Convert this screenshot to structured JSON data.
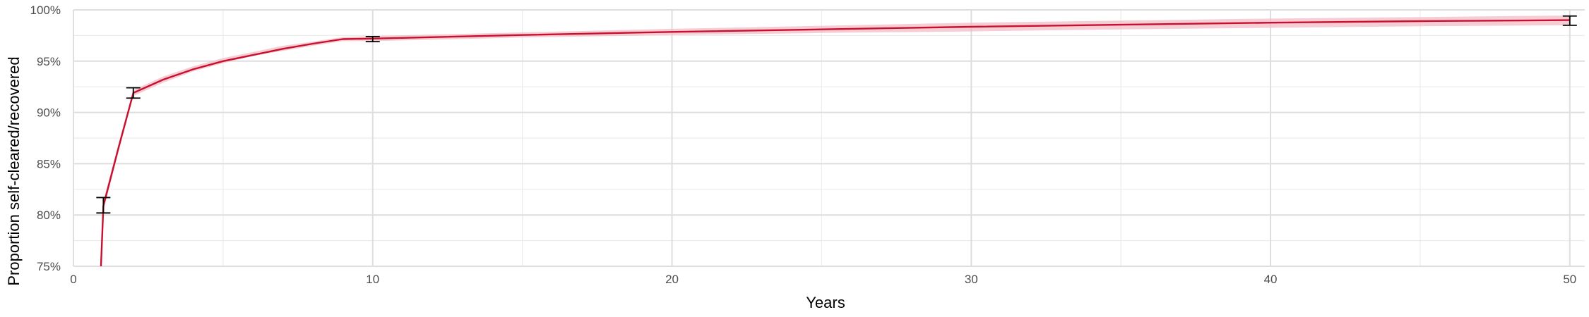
{
  "chart_data": {
    "type": "line",
    "title": "",
    "xlabel": "Years",
    "ylabel": "Proportion self-cleared/recovered",
    "xlim": [
      0,
      50.5
    ],
    "ylim": [
      75,
      100
    ],
    "x_ticks": [
      0,
      10,
      20,
      30,
      40,
      50
    ],
    "x_tick_labels": [
      "0",
      "10",
      "20",
      "30",
      "40",
      "50"
    ],
    "y_ticks": [
      75,
      80,
      85,
      90,
      95,
      100
    ],
    "y_tick_labels": [
      "75%",
      "80%",
      "85%",
      "90%",
      "95%",
      "100%"
    ],
    "x_minor_ticks": [
      5,
      15,
      25,
      35,
      45
    ],
    "y_minor_ticks": [
      77.5,
      82.5,
      87.5,
      92.5,
      97.5
    ],
    "grid": true,
    "legend": "none",
    "series": [
      {
        "x": [
          0.9,
          1,
          1.5,
          2,
          3,
          4,
          5,
          6,
          7,
          8,
          9,
          10,
          15,
          20,
          25,
          30,
          35,
          40,
          45,
          50
        ],
        "values": [
          73.5,
          80.9,
          86.5,
          91.9,
          93.2,
          94.2,
          95.0,
          95.6,
          96.2,
          96.7,
          97.15,
          97.2,
          97.55,
          97.85,
          98.1,
          98.35,
          98.55,
          98.75,
          98.9,
          99.0
        ],
        "ci_lower": [
          73.5,
          80.4,
          86.1,
          91.6,
          92.9,
          94.0,
          94.8,
          95.5,
          96.0,
          96.5,
          96.95,
          96.95,
          97.3,
          97.55,
          97.75,
          97.9,
          98.1,
          98.25,
          98.4,
          98.5
        ],
        "ci_upper": [
          73.5,
          81.4,
          86.9,
          92.2,
          93.5,
          94.5,
          95.3,
          95.9,
          96.5,
          96.9,
          97.35,
          97.45,
          97.8,
          98.15,
          98.45,
          98.75,
          98.95,
          99.15,
          99.3,
          99.45
        ],
        "color": "#c8102e",
        "ribbon_color": "#f2b8c2"
      }
    ],
    "error_bars": [
      {
        "x": 1,
        "low": 80.2,
        "high": 81.7
      },
      {
        "x": 2,
        "low": 91.4,
        "high": 92.4
      },
      {
        "x": 10,
        "low": 96.9,
        "high": 97.4
      },
      {
        "x": 50,
        "low": 98.5,
        "high": 99.4
      }
    ],
    "colors": {
      "grid_major": "#dedede",
      "grid_minor": "#ececec",
      "error_bar": "#000000"
    }
  }
}
